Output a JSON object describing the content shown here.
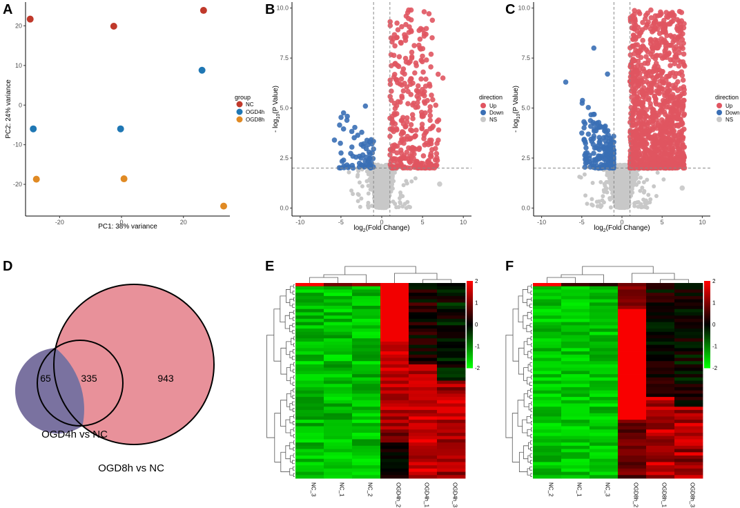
{
  "panels": {
    "A": "A",
    "B": "B",
    "C": "C",
    "D": "D",
    "E": "E",
    "F": "F"
  },
  "chart_data": [
    {
      "id": "A",
      "type": "scatter",
      "title": "",
      "xlabel": "PC1: 38% variance",
      "ylabel": "PC2: 24% variance",
      "xlim": [
        -31,
        35
      ],
      "ylim": [
        -28,
        26
      ],
      "xticks": [
        -20,
        0,
        20
      ],
      "xtick_labels": [
        "-20",
        "0",
        "20"
      ],
      "yticks": [
        -20,
        -10,
        0,
        10,
        20
      ],
      "ytick_labels": [
        "-20",
        "-10",
        "0",
        "10",
        "20"
      ],
      "legend_title": "group",
      "legend_position": "right",
      "series": [
        {
          "name": "NC",
          "color": "#c0392b",
          "points": [
            [
              -29.5,
              21.7
            ],
            [
              -2.5,
              19.9
            ],
            [
              26.5,
              23.9
            ]
          ]
        },
        {
          "name": "OGD4h",
          "color": "#1f77b4",
          "points": [
            [
              -28.5,
              -6.0
            ],
            [
              -0.3,
              -6.0
            ],
            [
              26.0,
              8.8
            ]
          ]
        },
        {
          "name": "OGD8h",
          "color": "#e08a24",
          "points": [
            [
              -27.5,
              -18.7
            ],
            [
              0.8,
              -18.6
            ],
            [
              33.0,
              -25.5
            ]
          ]
        }
      ]
    },
    {
      "id": "B",
      "type": "scatter",
      "title": "",
      "xlabel_main": "log",
      "xlabel_sub": "2",
      "xlabel_rest": "(Fold Change)",
      "ylabel_main": "- log",
      "ylabel_sub": "10",
      "ylabel_rest": "(P Value)",
      "xlim": [
        -11,
        11
      ],
      "ylim": [
        -0.4,
        10.3
      ],
      "xticks": [
        -10,
        -5,
        0,
        5,
        10
      ],
      "xtick_labels": [
        "-10",
        "-5",
        "0",
        "5",
        "10"
      ],
      "yticks": [
        0,
        2.5,
        5,
        7.5,
        10
      ],
      "ytick_labels": [
        "0.0",
        "2.5",
        "5.0",
        "7.5",
        "10.0"
      ],
      "thresholds": {
        "fc": 1,
        "p": 2
      },
      "legend_title": "direction",
      "legend_position": "right",
      "series": [
        {
          "name": "Up",
          "color": "#e05561",
          "count": 335
        },
        {
          "name": "Down",
          "color": "#3a6fb5",
          "count": 65
        },
        {
          "name": "NS",
          "color": "#c8c8c8"
        }
      ],
      "seed": 11
    },
    {
      "id": "C",
      "type": "scatter",
      "title": "",
      "xlabel_main": "log",
      "xlabel_sub": "2",
      "xlabel_rest": "(Fold Change)",
      "ylabel_main": "- log",
      "ylabel_sub": "10",
      "ylabel_rest": "(P Value)",
      "xlim": [
        -11,
        11
      ],
      "ylim": [
        -0.4,
        10.3
      ],
      "xticks": [
        -10,
        -5,
        0,
        5,
        10
      ],
      "xtick_labels": [
        "-10",
        "-5",
        "0",
        "5",
        "10"
      ],
      "yticks": [
        0,
        2.5,
        5,
        7.5,
        10
      ],
      "ytick_labels": [
        "0.0",
        "2.5",
        "5.0",
        "7.5",
        "10.0"
      ],
      "thresholds": {
        "fc": 1,
        "p": 2
      },
      "legend_title": "direction",
      "legend_position": "right",
      "series": [
        {
          "name": "Up",
          "color": "#e05561",
          "count": 1100
        },
        {
          "name": "Down",
          "color": "#3a6fb5",
          "count": 178
        },
        {
          "name": "NS",
          "color": "#c8c8c8"
        }
      ],
      "seed": 29
    },
    {
      "id": "D",
      "type": "venn",
      "sets": [
        {
          "name": "OGD4h vs NC",
          "size": 400,
          "only": "65",
          "color": "#6b8fc7"
        },
        {
          "name": "OGD8h vs NC",
          "size": 1278,
          "only": "943",
          "color": "#e8919a"
        }
      ],
      "intersection": "335",
      "intersection_color": "#7a72a0"
    },
    {
      "id": "E",
      "type": "heatmap",
      "columns": [
        "NC_3",
        "NC_1",
        "NC_2",
        "OGD4h_2",
        "OGD4h_1",
        "OGD4h_3"
      ],
      "rows": 60,
      "colorscale": {
        "min": -2,
        "max": 2,
        "low": "#00ff00",
        "mid": "#000000",
        "high": "#ff0000"
      },
      "colorbar_ticks": [
        "2",
        "1",
        "0",
        "-1",
        "-2"
      ],
      "seed": 5
    },
    {
      "id": "F",
      "type": "heatmap",
      "columns": [
        "NC_2",
        "NC_1",
        "NC_3",
        "OGD8h_2",
        "OGD8h_1",
        "OGD8h_3"
      ],
      "rows": 60,
      "colorscale": {
        "min": -2,
        "max": 2,
        "low": "#00ff00",
        "mid": "#000000",
        "high": "#ff0000"
      },
      "colorbar_ticks": [
        "2",
        "1",
        "0",
        "-1",
        "-2"
      ],
      "seed": 17
    }
  ]
}
